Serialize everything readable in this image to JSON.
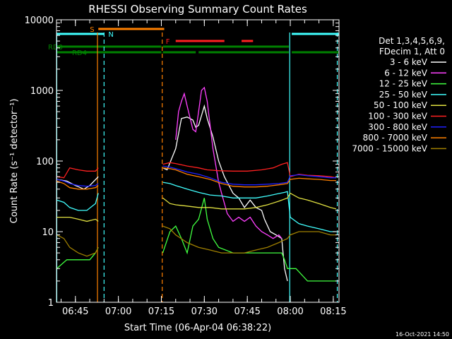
{
  "chart_data": {
    "type": "line",
    "title": "RHESSI Observing Summary Count Rates",
    "xlabel": "Start Time (06-Apr-04 06:38:22)",
    "ylabel": "Count Rate (s⁻¹ detector⁻¹)",
    "y_scale": "log",
    "ylim": [
      1,
      10000
    ],
    "xlim_minutes": [
      38.4,
      137.0
    ],
    "x_ticks": [
      {
        "label": "06:45",
        "minute": 45
      },
      {
        "label": "07:00",
        "minute": 60
      },
      {
        "label": "07:15",
        "minute": 75
      },
      {
        "label": "07:30",
        "minute": 90
      },
      {
        "label": "07:45",
        "minute": 105
      },
      {
        "label": "08:00",
        "minute": 120
      },
      {
        "label": "08:15",
        "minute": 135
      }
    ],
    "y_ticks": [
      {
        "label": "1",
        "value": 1
      },
      {
        "label": "10",
        "value": 10
      },
      {
        "label": "100",
        "value": 100
      },
      {
        "label": "1000",
        "value": 1000
      },
      {
        "label": "10000",
        "value": 10000
      }
    ],
    "legend_header": [
      "Det 1,3,4,5,6,9,",
      "FDecim 1, Att 0"
    ],
    "legend_placement": "right",
    "series": [
      {
        "name": "3 - 6 keV",
        "color": "#ffffff",
        "points": [
          [
            38.5,
            55
          ],
          [
            42,
            52
          ],
          [
            45,
            45
          ],
          [
            48,
            40
          ],
          [
            50,
            45
          ],
          [
            53,
            60
          ],
          [
            75.5,
            80
          ],
          [
            77,
            75
          ],
          [
            80,
            150
          ],
          [
            82,
            400
          ],
          [
            84,
            420
          ],
          [
            86,
            380
          ],
          [
            87,
            300
          ],
          [
            88,
            320
          ],
          [
            90,
            600
          ],
          [
            91,
            400
          ],
          [
            93,
            220
          ],
          [
            95,
            100
          ],
          [
            97,
            60
          ],
          [
            100,
            35
          ],
          [
            102,
            30
          ],
          [
            104,
            22
          ],
          [
            106,
            28
          ],
          [
            108,
            22
          ],
          [
            110,
            20
          ],
          [
            111,
            15
          ],
          [
            113,
            10
          ],
          [
            115,
            9
          ],
          [
            117,
            8
          ],
          [
            118,
            3
          ],
          [
            119,
            2
          ]
        ]
      },
      {
        "name": "6 - 12 keV",
        "color": "#ff40ff",
        "points": [
          [
            80,
            200
          ],
          [
            81,
            500
          ],
          [
            82,
            700
          ],
          [
            83,
            900
          ],
          [
            84,
            600
          ],
          [
            86,
            280
          ],
          [
            87,
            260
          ],
          [
            88,
            500
          ],
          [
            89,
            1000
          ],
          [
            90,
            1100
          ],
          [
            91,
            700
          ],
          [
            93,
            150
          ],
          [
            95,
            50
          ],
          [
            96,
            35
          ],
          [
            98,
            18
          ],
          [
            100,
            14
          ],
          [
            102,
            16
          ],
          [
            104,
            14
          ],
          [
            106,
            16
          ],
          [
            108,
            12
          ],
          [
            110,
            10
          ],
          [
            112,
            9
          ],
          [
            114,
            8
          ],
          [
            116,
            9
          ],
          [
            117,
            8
          ]
        ]
      },
      {
        "name": "12 - 25 keV",
        "color": "#40ff40",
        "points": [
          [
            38.5,
            3
          ],
          [
            42,
            4
          ],
          [
            45,
            4
          ],
          [
            48,
            4
          ],
          [
            50,
            4
          ],
          [
            52,
            5
          ],
          [
            53,
            6
          ],
          [
            75.5,
            5
          ],
          [
            78,
            10
          ],
          [
            80,
            12
          ],
          [
            82,
            8
          ],
          [
            84,
            5
          ],
          [
            86,
            12
          ],
          [
            88,
            15
          ],
          [
            90,
            30
          ],
          [
            91,
            15
          ],
          [
            93,
            8
          ],
          [
            95,
            6
          ],
          [
            100,
            5
          ],
          [
            105,
            5
          ],
          [
            110,
            5
          ],
          [
            115,
            5
          ],
          [
            117,
            5
          ],
          [
            118,
            4
          ],
          [
            119,
            3
          ],
          [
            122,
            3
          ],
          [
            126,
            2
          ],
          [
            130,
            2
          ],
          [
            134,
            2
          ],
          [
            136,
            2
          ]
        ]
      },
      {
        "name": "25 - 50 keV",
        "color": "#40ffff",
        "points": [
          [
            38.5,
            28
          ],
          [
            41,
            26
          ],
          [
            43,
            22
          ],
          [
            46,
            20
          ],
          [
            49,
            20
          ],
          [
            52,
            25
          ],
          [
            53,
            35
          ],
          [
            75.5,
            50
          ],
          [
            78,
            48
          ],
          [
            80,
            45
          ],
          [
            84,
            40
          ],
          [
            88,
            36
          ],
          [
            92,
            33
          ],
          [
            96,
            32
          ],
          [
            100,
            30
          ],
          [
            104,
            30
          ],
          [
            108,
            30
          ],
          [
            112,
            32
          ],
          [
            115,
            34
          ],
          [
            118,
            36
          ],
          [
            119,
            37
          ],
          [
            120,
            16
          ],
          [
            123,
            13
          ],
          [
            126,
            12
          ],
          [
            130,
            11
          ],
          [
            134,
            10
          ],
          [
            136,
            10
          ]
        ]
      },
      {
        "name": "50 - 100 keV",
        "color": "#e0e040",
        "points": [
          [
            38.5,
            16
          ],
          [
            41,
            16
          ],
          [
            43,
            16
          ],
          [
            46,
            15
          ],
          [
            49,
            14
          ],
          [
            52,
            15
          ],
          [
            53,
            14
          ],
          [
            75.5,
            30
          ],
          [
            78,
            25
          ],
          [
            80,
            24
          ],
          [
            84,
            23
          ],
          [
            88,
            22
          ],
          [
            92,
            22
          ],
          [
            96,
            21
          ],
          [
            100,
            21
          ],
          [
            104,
            21
          ],
          [
            108,
            22
          ],
          [
            112,
            24
          ],
          [
            116,
            27
          ],
          [
            119,
            30
          ],
          [
            120,
            35
          ],
          [
            123,
            30
          ],
          [
            126,
            28
          ],
          [
            130,
            25
          ],
          [
            134,
            22
          ],
          [
            136,
            21
          ]
        ]
      },
      {
        "name": "100 - 300 keV",
        "color": "#ff2020",
        "points": [
          [
            38.5,
            60
          ],
          [
            41,
            58
          ],
          [
            43,
            80
          ],
          [
            46,
            75
          ],
          [
            49,
            72
          ],
          [
            52,
            72
          ],
          [
            53,
            80
          ],
          [
            75.5,
            90
          ],
          [
            78,
            95
          ],
          [
            80,
            92
          ],
          [
            84,
            85
          ],
          [
            88,
            80
          ],
          [
            91,
            75
          ],
          [
            95,
            73
          ],
          [
            100,
            72
          ],
          [
            105,
            72
          ],
          [
            110,
            75
          ],
          [
            114,
            80
          ],
          [
            117,
            90
          ],
          [
            119,
            95
          ],
          [
            120,
            60
          ],
          [
            123,
            65
          ],
          [
            126,
            63
          ],
          [
            130,
            62
          ],
          [
            134,
            60
          ],
          [
            136,
            58
          ]
        ]
      },
      {
        "name": "300 - 800 keV",
        "color": "#2020ff",
        "points": [
          [
            38.5,
            55
          ],
          [
            41,
            52
          ],
          [
            43,
            48
          ],
          [
            46,
            45
          ],
          [
            49,
            44
          ],
          [
            52,
            45
          ],
          [
            53,
            48
          ],
          [
            75.5,
            85
          ],
          [
            78,
            82
          ],
          [
            80,
            78
          ],
          [
            84,
            70
          ],
          [
            88,
            65
          ],
          [
            92,
            58
          ],
          [
            96,
            50
          ],
          [
            100,
            47
          ],
          [
            104,
            46
          ],
          [
            108,
            46
          ],
          [
            112,
            47
          ],
          [
            116,
            48
          ],
          [
            119,
            50
          ],
          [
            120,
            62
          ],
          [
            123,
            64
          ],
          [
            126,
            62
          ],
          [
            130,
            60
          ],
          [
            134,
            58
          ],
          [
            136,
            58
          ]
        ]
      },
      {
        "name": "800 - 7000 keV",
        "color": "#ff8000",
        "points": [
          [
            38.5,
            52
          ],
          [
            41,
            48
          ],
          [
            43,
            42
          ],
          [
            46,
            40
          ],
          [
            49,
            40
          ],
          [
            52,
            42
          ],
          [
            53,
            45
          ],
          [
            75.5,
            80
          ],
          [
            78,
            78
          ],
          [
            80,
            75
          ],
          [
            84,
            65
          ],
          [
            88,
            60
          ],
          [
            92,
            55
          ],
          [
            96,
            48
          ],
          [
            100,
            44
          ],
          [
            104,
            43
          ],
          [
            108,
            43
          ],
          [
            112,
            44
          ],
          [
            116,
            46
          ],
          [
            119,
            48
          ],
          [
            120,
            55
          ],
          [
            123,
            57
          ],
          [
            126,
            56
          ],
          [
            130,
            55
          ],
          [
            134,
            53
          ],
          [
            136,
            53
          ]
        ]
      },
      {
        "name": "7000 - 15000 keV",
        "color": "#a08000",
        "points": [
          [
            38.5,
            9
          ],
          [
            41,
            8
          ],
          [
            43,
            6
          ],
          [
            46,
            5
          ],
          [
            49,
            4.5
          ],
          [
            52,
            5
          ],
          [
            53,
            6
          ],
          [
            75.5,
            12
          ],
          [
            78,
            11
          ],
          [
            80,
            9
          ],
          [
            84,
            7
          ],
          [
            88,
            6
          ],
          [
            92,
            5.5
          ],
          [
            96,
            5
          ],
          [
            100,
            5
          ],
          [
            104,
            5
          ],
          [
            108,
            5.5
          ],
          [
            112,
            6
          ],
          [
            116,
            7
          ],
          [
            119,
            8
          ],
          [
            120,
            9
          ],
          [
            123,
            10
          ],
          [
            126,
            10
          ],
          [
            130,
            10
          ],
          [
            134,
            9
          ],
          [
            136,
            9
          ]
        ]
      }
    ],
    "flag_bars": [
      {
        "label": "S",
        "color": "#ff8000",
        "segments": [
          [
            53,
            76
          ]
        ]
      },
      {
        "label": "N",
        "color": "#40ffff",
        "segments": [
          [
            38.5,
            55
          ],
          [
            120.5,
            137
          ]
        ]
      },
      {
        "label": "F",
        "color": "#ff2020",
        "segments": [
          [
            80,
            97
          ],
          [
            103,
            107
          ]
        ]
      },
      {
        "label": "RD0",
        "color": "#008000",
        "segments": [
          [
            38.5,
            75
          ],
          [
            75.5,
            119.5
          ]
        ]
      },
      {
        "label": "RD4",
        "color": "#008000",
        "segments": [
          [
            38.5,
            75
          ],
          [
            75.5,
            87
          ],
          [
            88,
            119.5
          ],
          [
            120.5,
            137
          ]
        ]
      }
    ],
    "vertical_markers": [
      {
        "minute": 38.5,
        "color": "#40ffff",
        "style": "solid"
      },
      {
        "minute": 52.7,
        "color": "#ff8000",
        "style": "solid"
      },
      {
        "minute": 55.0,
        "color": "#40ffff",
        "style": "dashed"
      },
      {
        "minute": 75.3,
        "color": "#ff8000",
        "style": "dashed"
      },
      {
        "minute": 119.8,
        "color": "#40ffff",
        "style": "solid"
      },
      {
        "minute": 136.4,
        "color": "#40ffff",
        "style": "dashed"
      }
    ],
    "grid": false
  },
  "footer_stamp": "16-Oct-2021 14:50"
}
